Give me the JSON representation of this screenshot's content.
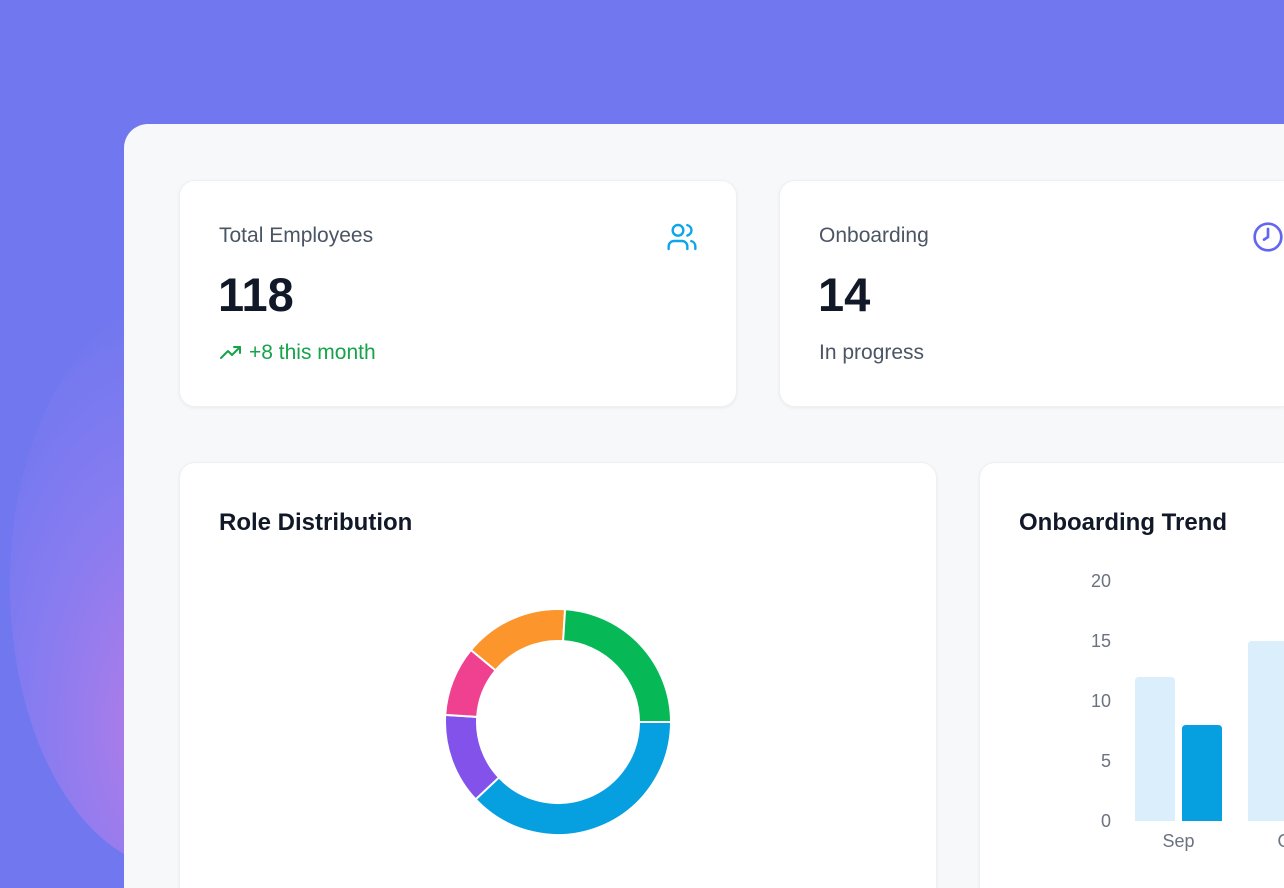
{
  "stats": [
    {
      "label": "Total Employees",
      "value": "118",
      "sub": "+8 this month",
      "icon": "users-icon",
      "sub_icon": "trending-up-icon"
    },
    {
      "label": "Onboarding",
      "value": "14",
      "sub": "In progress",
      "icon": "clock-icon"
    }
  ],
  "colors": {
    "background": "#7178ef",
    "panel": "#f7f8fa",
    "positive": "#16a34a",
    "users_icon": "#0ea5e9",
    "clock_icon": "#6366f1"
  },
  "chart_data": [
    {
      "type": "pie",
      "title": "Role Distribution",
      "donut": true,
      "slices": [
        {
          "value": 38,
          "color": "#069fe0"
        },
        {
          "value": 13,
          "color": "#8352ea"
        },
        {
          "value": 10,
          "color": "#ef4190"
        },
        {
          "value": 15,
          "color": "#fb952c"
        },
        {
          "value": 24,
          "color": "#06b856"
        }
      ]
    },
    {
      "type": "bar",
      "title": "Onboarding Trend",
      "categories": [
        "Sep",
        "Oct"
      ],
      "ylim": [
        0,
        20
      ],
      "yticks": [
        "0",
        "5",
        "10",
        "15",
        "20"
      ],
      "series": [
        {
          "values": [
            12,
            15
          ],
          "color": "#dbeefb"
        },
        {
          "values": [
            8,
            null
          ],
          "color": "#069fe0"
        }
      ]
    }
  ]
}
